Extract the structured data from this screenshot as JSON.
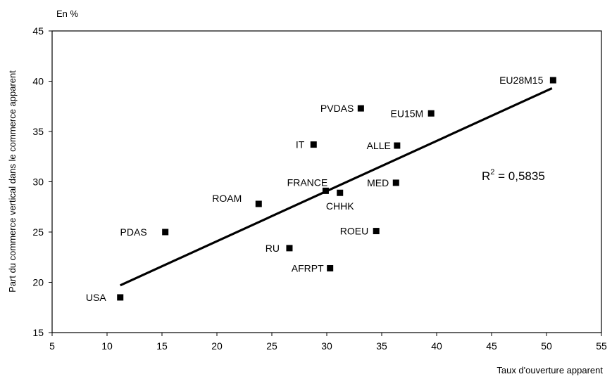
{
  "chart_data": {
    "type": "scatter",
    "unit_label": "En %",
    "xlabel": "Taux d'ouverture apparent",
    "ylabel": "Part du commerce vertical dans le commerce apparent",
    "xlim": [
      5,
      55
    ],
    "ylim": [
      15,
      45
    ],
    "x_ticks": [
      5,
      10,
      15,
      20,
      25,
      30,
      35,
      40,
      45,
      50,
      55
    ],
    "y_ticks": [
      15,
      20,
      25,
      30,
      35,
      40,
      45
    ],
    "points": [
      {
        "label": "USA",
        "x": 11.2,
        "y": 18.5
      },
      {
        "label": "PDAS",
        "x": 15.3,
        "y": 25.0
      },
      {
        "label": "ROAM",
        "x": 23.8,
        "y": 27.8
      },
      {
        "label": "RU",
        "x": 26.6,
        "y": 23.4
      },
      {
        "label": "IT",
        "x": 28.8,
        "y": 33.7
      },
      {
        "label": "FRANCE",
        "x": 29.9,
        "y": 29.1
      },
      {
        "label": "AFRPT",
        "x": 30.3,
        "y": 21.4
      },
      {
        "label": "CHHK",
        "x": 31.2,
        "y": 28.9
      },
      {
        "label": "PVDAS",
        "x": 33.1,
        "y": 37.3
      },
      {
        "label": "ROEU",
        "x": 34.5,
        "y": 25.1
      },
      {
        "label": "MED",
        "x": 36.3,
        "y": 29.9
      },
      {
        "label": "ALLE",
        "x": 36.4,
        "y": 33.6
      },
      {
        "label": "EU15M",
        "x": 39.5,
        "y": 36.8
      },
      {
        "label": "EU28M15",
        "x": 50.6,
        "y": 40.1
      }
    ],
    "trendline": {
      "x": [
        11.2,
        50.5
      ],
      "y": [
        19.7,
        39.3
      ]
    },
    "r2_text": {
      "prefix": "R",
      "exp": "2",
      "value": " = 0,5835"
    },
    "grid": false,
    "legend": "none"
  }
}
